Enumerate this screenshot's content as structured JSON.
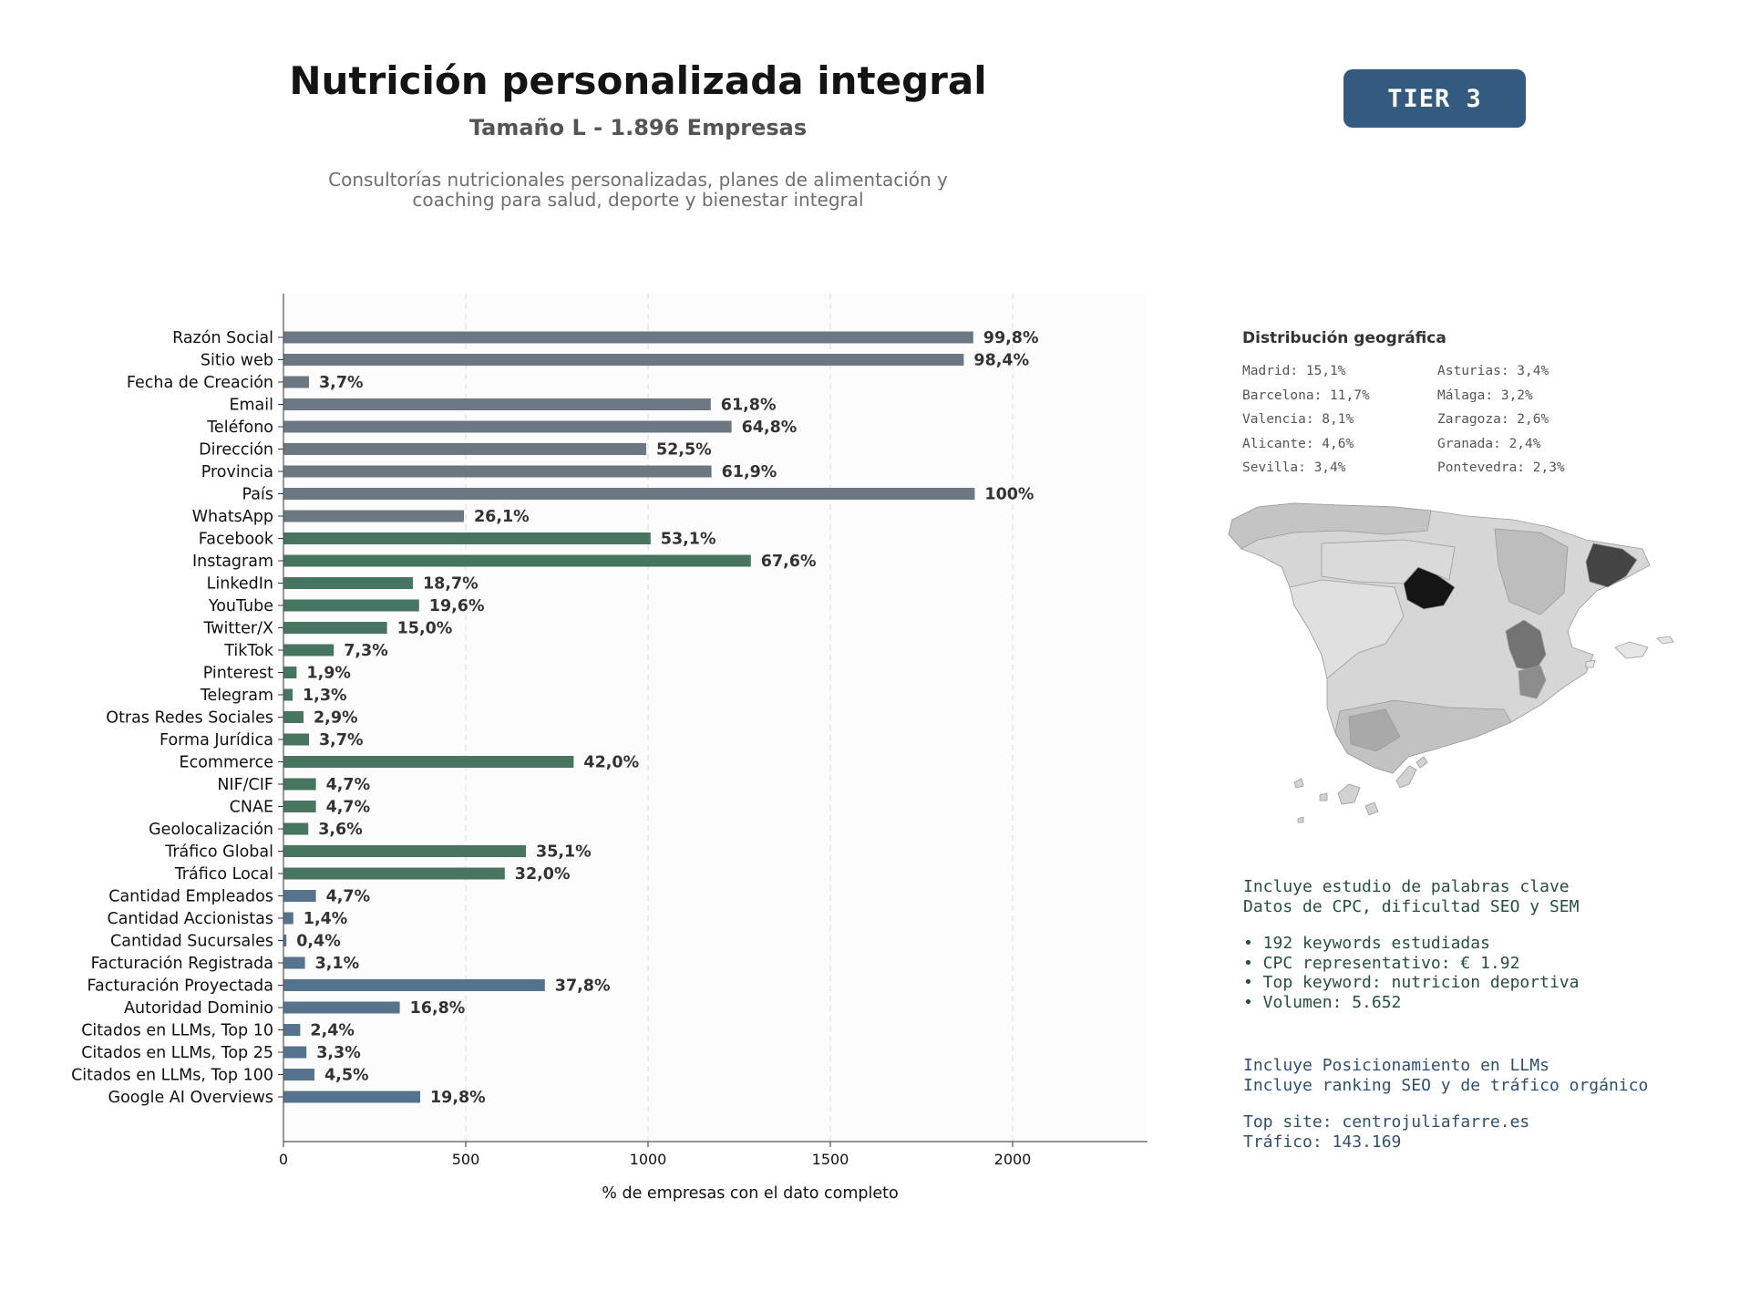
{
  "header": {
    "title": "Nutrición personalizada integral",
    "subtitle": "Tamaño L - 1.896 Empresas",
    "description_line1": "Consultorías nutricionales personalizadas, planes de alimentación y",
    "description_line2": "coaching para salud, deporte y bienestar integral",
    "tier": "TIER 3"
  },
  "colors": {
    "group_basic": "#6c7781",
    "group_social": "#477561",
    "group_business": "#56738e",
    "badge": "#345a80"
  },
  "chart_data": {
    "type": "bar",
    "orientation": "horizontal",
    "xlabel": "% de empresas con el dato completo",
    "xlim": [
      0,
      2370
    ],
    "xticks": [
      0,
      500,
      1000,
      1500,
      2000
    ],
    "grid": "x dashed",
    "categories": [
      "Razón Social",
      "Sitio web",
      "Fecha de Creación",
      "Email",
      "Teléfono",
      "Dirección",
      "Provincia",
      "País",
      "WhatsApp",
      "Facebook",
      "Instagram",
      "LinkedIn",
      "YouTube",
      "Twitter/X",
      "TikTok",
      "Pinterest",
      "Telegram",
      "Otras Redes Sociales",
      "Forma Jurídica",
      "Ecommerce",
      "NIF/CIF",
      "CNAE",
      "Geolocalización",
      "Tráfico Global",
      "Tráfico Local",
      "Cantidad Empleados",
      "Cantidad Accionistas",
      "Cantidad Sucursales",
      "Facturación Registrada",
      "Facturación Proyectada",
      "Autoridad Dominio",
      "Citados en LLMs, Top 10",
      "Citados en LLMs, Top 25",
      "Citados en LLMs, Top 100",
      "Google AI Overviews"
    ],
    "values": [
      1892,
      1866,
      70,
      1172,
      1229,
      995,
      1174,
      1896,
      495,
      1007,
      1282,
      355,
      372,
      284,
      138,
      36,
      25,
      55,
      70,
      796,
      89,
      89,
      68,
      665,
      607,
      89,
      27,
      8,
      59,
      717,
      319,
      46,
      63,
      85,
      375
    ],
    "labels": [
      "99,8%",
      "98,4%",
      "3,7%",
      "61,8%",
      "64,8%",
      "52,5%",
      "61,9%",
      "100%",
      "26,1%",
      "53,1%",
      "67,6%",
      "18,7%",
      "19,6%",
      "15,0%",
      "7,3%",
      "1,9%",
      "1,3%",
      "2,9%",
      "3,7%",
      "42,0%",
      "4,7%",
      "4,7%",
      "3,6%",
      "35,1%",
      "32,0%",
      "4,7%",
      "1,4%",
      "0,4%",
      "3,1%",
      "37,8%",
      "16,8%",
      "2,4%",
      "3,3%",
      "4,5%",
      "19,8%"
    ],
    "groups": [
      "basic",
      "basic",
      "basic",
      "basic",
      "basic",
      "basic",
      "basic",
      "basic",
      "basic",
      "social",
      "social",
      "social",
      "social",
      "social",
      "social",
      "social",
      "social",
      "social",
      "social",
      "social",
      "social",
      "social",
      "social",
      "social",
      "social",
      "business",
      "business",
      "business",
      "business",
      "business",
      "business",
      "business",
      "business",
      "business",
      "business"
    ]
  },
  "geo": {
    "title": "Distribución geográfica",
    "items": [
      "Madrid: 15,1%",
      "Asturias: 3,4%",
      "Barcelona: 11,7%",
      "Málaga: 3,2%",
      "Valencia: 8,1%",
      "Zaragoza: 2,6%",
      "Alicante: 4,6%",
      "Granada: 2,4%",
      "Sevilla: 3,4%",
      "Pontevedra: 2,3%"
    ]
  },
  "keywords_info": {
    "line1": "Incluye estudio de palabras clave",
    "line2": "Datos de CPC, dificultad SEO y SEM",
    "bullet1": "• 192 keywords estudiadas",
    "bullet2": "• CPC representativo: € 1.92",
    "bullet3": "• Top keyword: nutricion deportiva",
    "bullet4": "• Volumen: 5.652"
  },
  "llm_info": {
    "line1": "Incluye Posicionamiento en LLMs",
    "line2": "Incluye ranking SEO y de tráfico orgánico",
    "top_site": "Top site: centrojuliafarre.es",
    "traffic": "Tráfico: 143.169"
  }
}
